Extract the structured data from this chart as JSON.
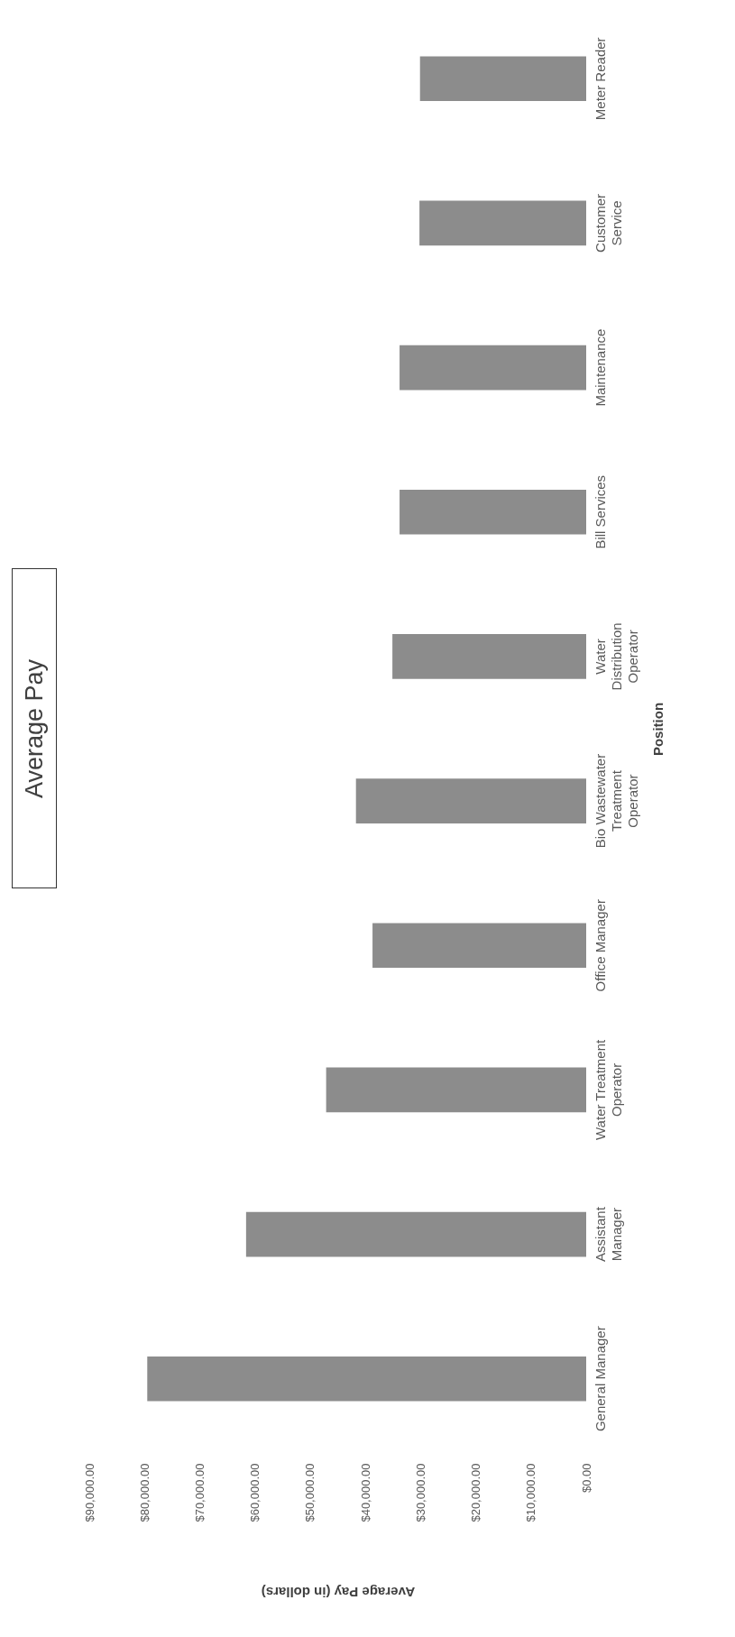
{
  "chart_data": {
    "type": "bar",
    "orientation": "horizontal",
    "title": "Average Pay",
    "xlabel": "Average Pay (in dollars)",
    "ylabel": "Position",
    "categories": [
      "Meter Reader",
      "Customer Service",
      "Maintenance",
      "Bill Services",
      "Water Distribution Operator",
      "Bio Wastewater Treatment Operator",
      "Office Manager",
      "Water Treatment Operator",
      "Assistant Manager",
      "General Manager"
    ],
    "values": [
      30100,
      30200,
      33800,
      33800,
      35100,
      41700,
      38700,
      47100,
      61600,
      79500
    ],
    "color": "#8c8c8c",
    "xlim": [
      90000,
      0
    ],
    "xticks": [
      {
        "value": 0,
        "label": "$0.00"
      },
      {
        "value": 10000,
        "label": "$10,000.00"
      },
      {
        "value": 20000,
        "label": "$20,000.00"
      },
      {
        "value": 30000,
        "label": "$30,000.00"
      },
      {
        "value": 40000,
        "label": "$40,000.00"
      },
      {
        "value": 50000,
        "label": "$50,000.00"
      },
      {
        "value": 60000,
        "label": "$60,000.00"
      },
      {
        "value": 70000,
        "label": "$70,000.00"
      },
      {
        "value": 80000,
        "label": "$80,000.00"
      },
      {
        "value": 90000,
        "label": "$90,000.00"
      }
    ]
  }
}
